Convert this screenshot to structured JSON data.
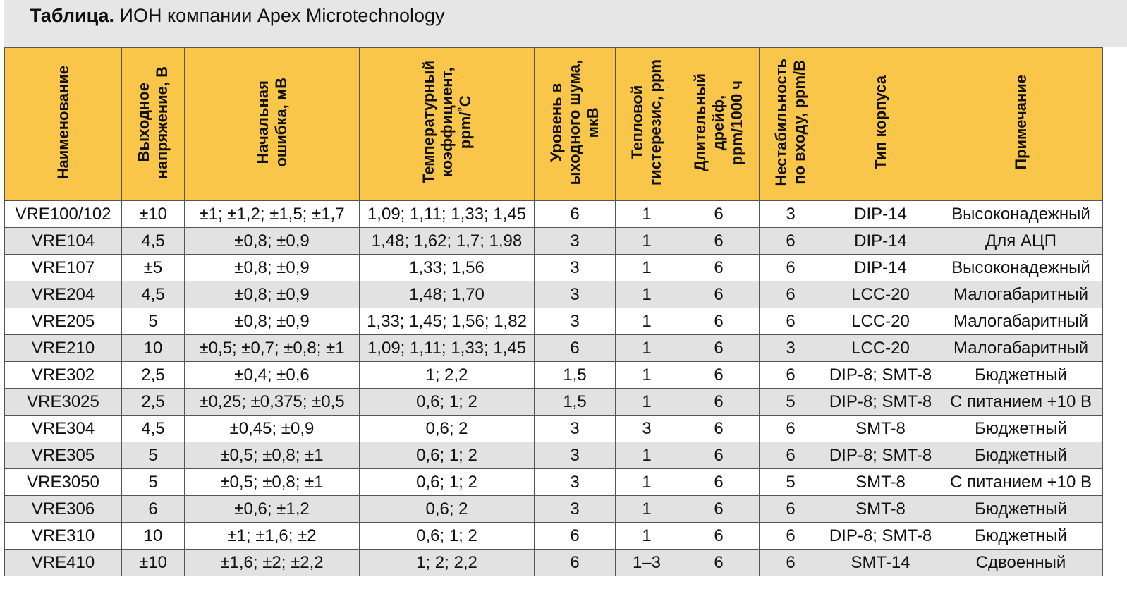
{
  "caption": {
    "bold": "Таблица.",
    "rest": " ИОН компании Apex Microtechnology"
  },
  "headers": [
    "Наименование",
    "Выходное\nнапряжение, В",
    "Начальная\nошибка, мВ",
    "Температурный\nкоэффициент,\nppm/˚С",
    "Уровень в\nыходного шума,\nмкВ",
    "Тепловой\nгистерезис, ppm",
    "Длительный\nдрейф,\nppm/1000 ч",
    "Нестабильность\nпо входу, ppm/В",
    "Тип корпуса",
    "Примечание"
  ],
  "rows": [
    [
      "VRE100/102",
      "±10",
      "±1; ±1,2; ±1,5; ±1,7",
      "1,09; 1,11; 1,33; 1,45",
      "6",
      "1",
      "6",
      "3",
      "DIP-14",
      "Высоконадежный"
    ],
    [
      "VRE104",
      "4,5",
      "±0,8; ±0,9",
      "1,48; 1,62; 1,7; 1,98",
      "3",
      "1",
      "6",
      "6",
      "DIP-14",
      "Для АЦП"
    ],
    [
      "VRE107",
      "±5",
      "±0,8; ±0,9",
      "1,33; 1,56",
      "3",
      "1",
      "6",
      "6",
      "DIP-14",
      "Высоконадежный"
    ],
    [
      "VRE204",
      "4,5",
      "±0,8; ±0,9",
      "1,48; 1,70",
      "3",
      "1",
      "6",
      "6",
      "LCC-20",
      "Малогабаритный"
    ],
    [
      "VRE205",
      "5",
      "±0,8; ±0,9",
      "1,33; 1,45; 1,56; 1,82",
      "3",
      "1",
      "6",
      "6",
      "LCC-20",
      "Малогабаритный"
    ],
    [
      "VRE210",
      "10",
      "±0,5; ±0,7; ±0,8; ±1",
      "1,09; 1,11; 1,33; 1,45",
      "6",
      "1",
      "6",
      "3",
      "LCC-20",
      "Малогабаритный"
    ],
    [
      "VRE302",
      "2,5",
      "±0,4; ±0,6",
      "1; 2,2",
      "1,5",
      "1",
      "6",
      "6",
      "DIP-8; SMT-8",
      "Бюджетный"
    ],
    [
      "VRE3025",
      "2,5",
      "±0,25; ±0,375; ±0,5",
      "0,6; 1; 2",
      "1,5",
      "1",
      "6",
      "5",
      "DIP-8; SMT-8",
      "С питанием +10 В"
    ],
    [
      "VRE304",
      "4,5",
      "±0,45; ±0,9",
      "0,6; 2",
      "3",
      "3",
      "6",
      "6",
      "SMT-8",
      "Бюджетный"
    ],
    [
      "VRE305",
      "5",
      "±0,5; ±0,8; ±1",
      "0,6; 1; 2",
      "3",
      "1",
      "6",
      "6",
      "DIP-8; SMT-8",
      "Бюджетный"
    ],
    [
      "VRE3050",
      "5",
      "±0,5; ±0,8; ±1",
      "0,6; 1; 2",
      "3",
      "1",
      "6",
      "5",
      "SMT-8",
      "С питанием +10 В"
    ],
    [
      "VRE306",
      "6",
      "±0,6; ±1,2",
      "0,6; 2",
      "3",
      "1",
      "6",
      "6",
      "SMT-8",
      "Бюджетный"
    ],
    [
      "VRE310",
      "10",
      "±1; ±1,6; ±2",
      "0,6; 1; 2",
      "6",
      "1",
      "6",
      "6",
      "DIP-8; SMT-8",
      "Бюджетный"
    ],
    [
      "VRE410",
      "±10",
      "±1,6; ±2; ±2,2",
      "1; 2; 2,2",
      "6",
      "1–3",
      "6",
      "6",
      "SMT-14",
      "Сдвоенный"
    ]
  ]
}
